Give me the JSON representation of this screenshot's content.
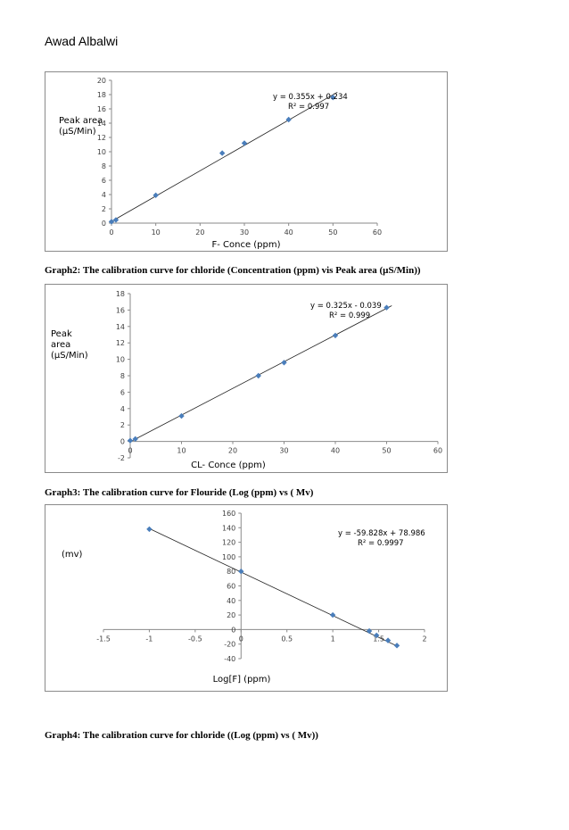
{
  "header": {
    "author": "Awad Albalwi"
  },
  "captions": {
    "graph2": "Graph2: The calibration curve for chloride (Concentration (ppm) vis Peak area (µS/Min))",
    "graph3": "Graph3: The calibration curve for Flouride (Log (ppm) vs ( Mv)",
    "graph4": "Graph4: The calibration curve for chloride ((Log (ppm) vs ( Mv))"
  },
  "chart_data": [
    {
      "type": "scatter",
      "xlabel": "F- Conce (ppm)",
      "ylabel_lines": [
        "Peak area",
        "(µS/Min)"
      ],
      "xlim": [
        0,
        60
      ],
      "ylim": [
        0,
        20
      ],
      "xticks": [
        0,
        10,
        20,
        30,
        40,
        50,
        60
      ],
      "yticks": [
        0,
        2,
        4,
        6,
        8,
        10,
        12,
        14,
        16,
        18,
        20
      ],
      "x": [
        0,
        1,
        10,
        25,
        30,
        40,
        50
      ],
      "y": [
        0.2,
        0.45,
        3.9,
        9.8,
        11.2,
        14.5,
        17.6
      ],
      "trendline": {
        "slope": 0.355,
        "intercept": 0.234,
        "x_from": 0,
        "x_to": 51
      },
      "equation": "y = 0.355x + 0.234",
      "r2": "R² = 0.997",
      "marker_color": "#4a7ebb"
    },
    {
      "type": "scatter",
      "xlabel": "CL- Conce (ppm)",
      "ylabel_lines": [
        "Peak",
        "area",
        "(µS/Min)"
      ],
      "xlim": [
        0,
        60
      ],
      "ylim": [
        -2,
        18
      ],
      "xticks": [
        0,
        10,
        20,
        30,
        40,
        50,
        60
      ],
      "yticks": [
        -2,
        0,
        2,
        4,
        6,
        8,
        10,
        12,
        14,
        16,
        18
      ],
      "x": [
        0,
        1,
        10,
        25,
        30,
        40,
        50
      ],
      "y": [
        0.1,
        0.3,
        3.1,
        8.0,
        9.6,
        12.9,
        16.3
      ],
      "trendline": {
        "slope": 0.325,
        "intercept": -0.039,
        "x_from": 0,
        "x_to": 51
      },
      "equation": "y = 0.325x - 0.039",
      "r2": "R² = 0.999",
      "marker_color": "#4a7ebb"
    },
    {
      "type": "scatter",
      "xlabel": "Log[F] (ppm)",
      "ylabel_lines": [
        "(mv)"
      ],
      "xlim": [
        -1.5,
        2
      ],
      "ylim": [
        -40,
        160
      ],
      "xticks": [
        -1.5,
        -1,
        -0.5,
        0,
        0.5,
        1,
        1.5,
        2
      ],
      "yticks": [
        -40,
        -20,
        0,
        20,
        40,
        60,
        80,
        100,
        120,
        140,
        160
      ],
      "x": [
        -1,
        0,
        1,
        1.398,
        1.477,
        1.602,
        1.699
      ],
      "y": [
        138,
        80,
        20,
        -2,
        -8,
        -15,
        -22
      ],
      "trendline": {
        "slope": -59.828,
        "intercept": 78.986,
        "x_from": -1,
        "x_to": 1.71
      },
      "equation": "y = -59.828x + 78.986",
      "r2": "R² = 0.9997",
      "marker_color": "#4a7ebb"
    }
  ]
}
